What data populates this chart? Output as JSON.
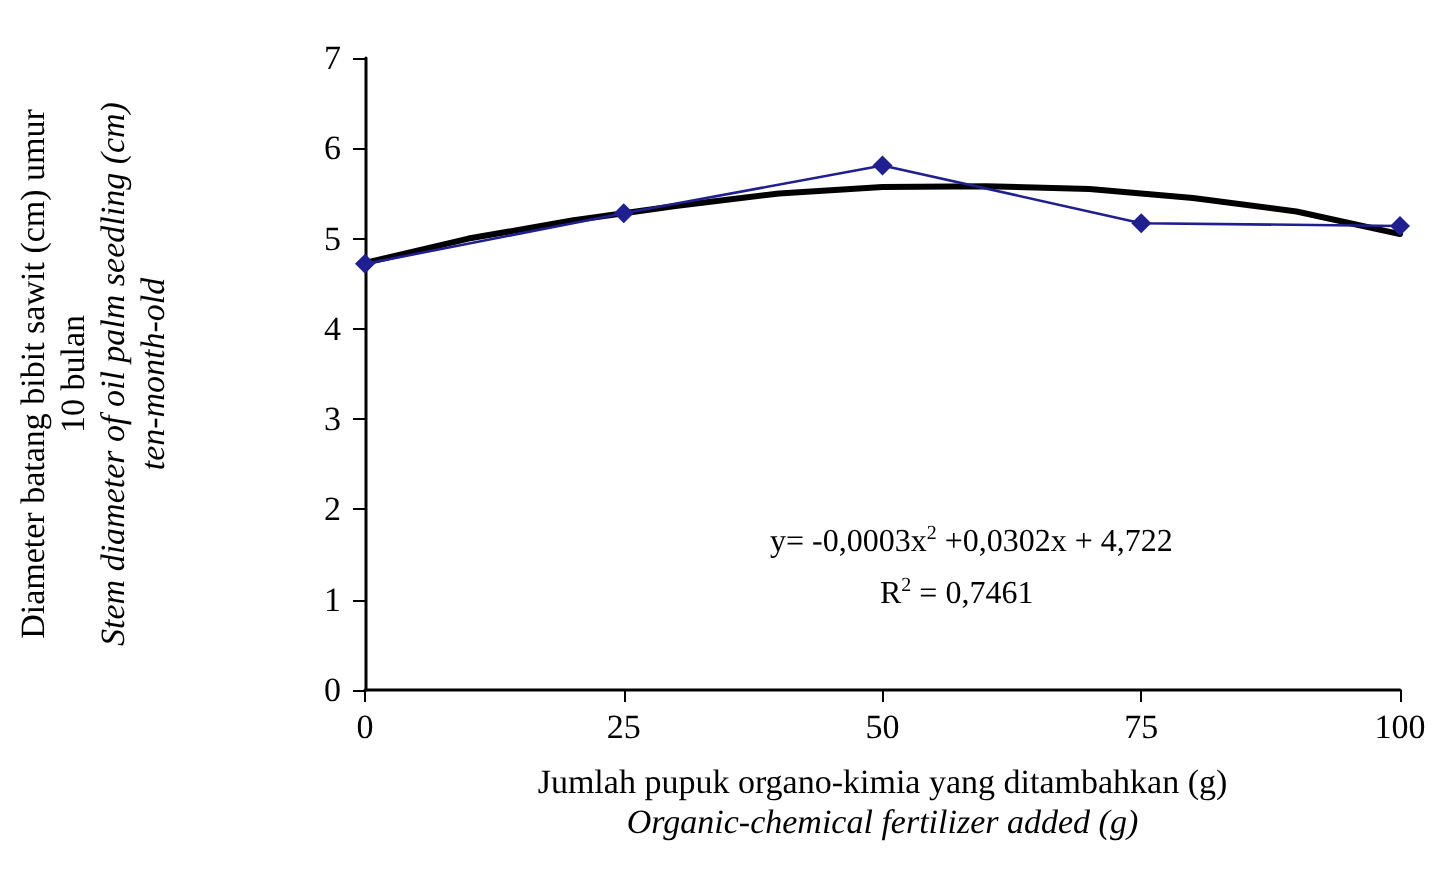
{
  "chart_data": {
    "type": "line",
    "xlabel": "Jumlah pupuk organo-kimia yang ditambahkan (g)\nOrganic-chemical fertilizer added (g)",
    "ylabel": "Diameter batang bibit sawit (cm) umur\n10 bulan\nStem diameter of oil palm seedling (cm)\nten-month-old",
    "x": [
      0,
      25,
      50,
      75,
      100
    ],
    "series": [
      {
        "color": "#1f1f8f",
        "values": [
          4.72,
          5.28,
          5.81,
          5.17,
          5.14
        ],
        "marker": "diamond"
      },
      {
        "color": "#000000",
        "x": [
          0,
          10,
          20,
          30,
          40,
          50,
          60,
          70,
          80,
          90,
          100
        ],
        "values": [
          4.73,
          5.0,
          5.2,
          5.36,
          5.5,
          5.57,
          5.58,
          5.55,
          5.45,
          5.3,
          5.05
        ],
        "marker": "none"
      }
    ],
    "xlim": [
      0,
      100
    ],
    "xticks": [
      0,
      25,
      50,
      75,
      100
    ],
    "ylim": [
      0,
      7
    ],
    "yticks": [
      0,
      1,
      2,
      3,
      4,
      5,
      6,
      7
    ],
    "grid": false,
    "line_style": "solid",
    "annotations": [
      "y= -0,0003x$^{2}$ +0,0302x + 4,722",
      "R$^{2}$ = 0,7461"
    ]
  }
}
